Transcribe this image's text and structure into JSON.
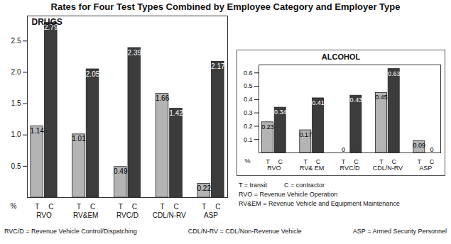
{
  "title": "Rates for Four Test Types Combined by Employee Category and Employer Type",
  "chart_data": [
    {
      "type": "bar",
      "title": "DRUGS",
      "ylabel": "%",
      "categories": [
        "RVO",
        "RV&EM",
        "RVC/D",
        "CDL/N-RV",
        "ASP"
      ],
      "series": [
        {
          "name": "T",
          "color": "#b4b4b4",
          "values": [
            1.14,
            1.01,
            0.49,
            1.66,
            0.22
          ]
        },
        {
          "name": "C",
          "color": "#3c3c3c",
          "values": [
            2.79,
            2.05,
            2.39,
            1.42,
            2.17
          ]
        }
      ],
      "ylim": [
        0,
        2.9
      ],
      "yticks": [
        0.5,
        {
          "value": 1,
          "label": "1.0"
        },
        1.5,
        {
          "value": 2,
          "label": "2.0"
        },
        2.5
      ],
      "grid": false,
      "data_labels": true
    },
    {
      "type": "bar",
      "title": "ALCOHOL",
      "ylabel": "%",
      "categories": [
        "RVO",
        "RV& EM",
        "RVC/D",
        "CDL/N-RV",
        "ASP"
      ],
      "series": [
        {
          "name": "T",
          "color": "#b4b4b4",
          "values": [
            0.23,
            0.17,
            0,
            0.45,
            0.09
          ]
        },
        {
          "name": "C",
          "color": "#3c3c3c",
          "values": [
            0.34,
            0.41,
            0.43,
            0.63,
            0
          ]
        }
      ],
      "ylim": [
        0,
        0.66
      ],
      "yticks": [
        0.1,
        0.2,
        0.3,
        0.4,
        0.5,
        0.6
      ],
      "grid": false,
      "data_labels": true
    }
  ],
  "notes": [
    [
      "T = transit",
      "C = contractor"
    ],
    [
      "RVO = Revenue Vehicle Operation"
    ],
    [
      "RV&EM = Revenue Vehicle and Equipment Maintenance"
    ],
    [
      "RVC/D = Revenue Vehicle Control/Dispatching",
      "CDL/N-RV = CDL/Non-Revenue Vehicle",
      "ASP = Armed Security Personnel"
    ]
  ]
}
